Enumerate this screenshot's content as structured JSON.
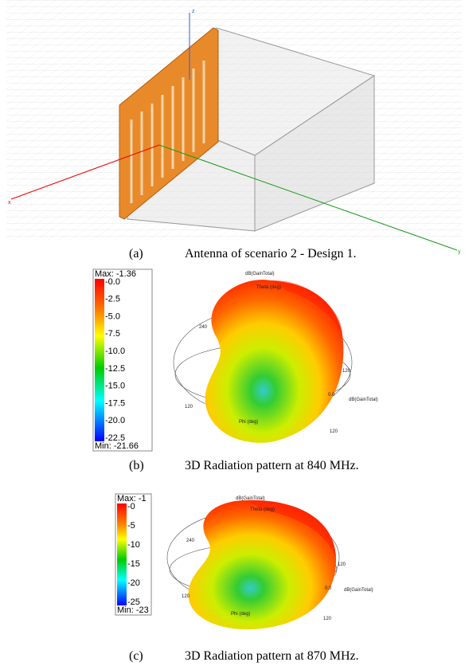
{
  "panels": [
    {
      "label": "(a)",
      "caption": "Antenna of scenario 2 - Design 1.",
      "axes": {
        "x": "x",
        "y": "y",
        "z": "z"
      }
    },
    {
      "label": "(b)",
      "caption": "3D Radiation pattern at 840 MHz.",
      "legend": {
        "max": "Max: -1.36",
        "min": "Min: -21.66",
        "levels": [
          "-0.0",
          "-2.5",
          "-5.0",
          "-7.5",
          "-10.0",
          "-12.5",
          "-15.0",
          "-17.5",
          "-20.0",
          "-22.5"
        ]
      },
      "plot_labels": {
        "top": "dB(GainTotal)",
        "theta": "Theta (deg)",
        "left": "240",
        "right_top": "120",
        "zero": "0.0",
        "right": "dB(GainTotal)",
        "bottom_right": "120",
        "phi": "Phi (deg)",
        "bottom_left": "120"
      }
    },
    {
      "label": "(c)",
      "caption": "3D Radiation pattern at 870 MHz.",
      "legend": {
        "max": "Max: -1",
        "min": "Min: -23",
        "levels": [
          "-0",
          "-5",
          "-10",
          "-15",
          "-20",
          "-25"
        ]
      },
      "plot_labels": {
        "top": "dB(GainTotal)",
        "theta": "Theta (deg)",
        "left": "240",
        "right_top": "120",
        "zero": "0.0",
        "right": "dB(GainTotal)",
        "bottom_right": "120",
        "phi": "Phi (deg)",
        "bottom_left": "120"
      }
    }
  ]
}
